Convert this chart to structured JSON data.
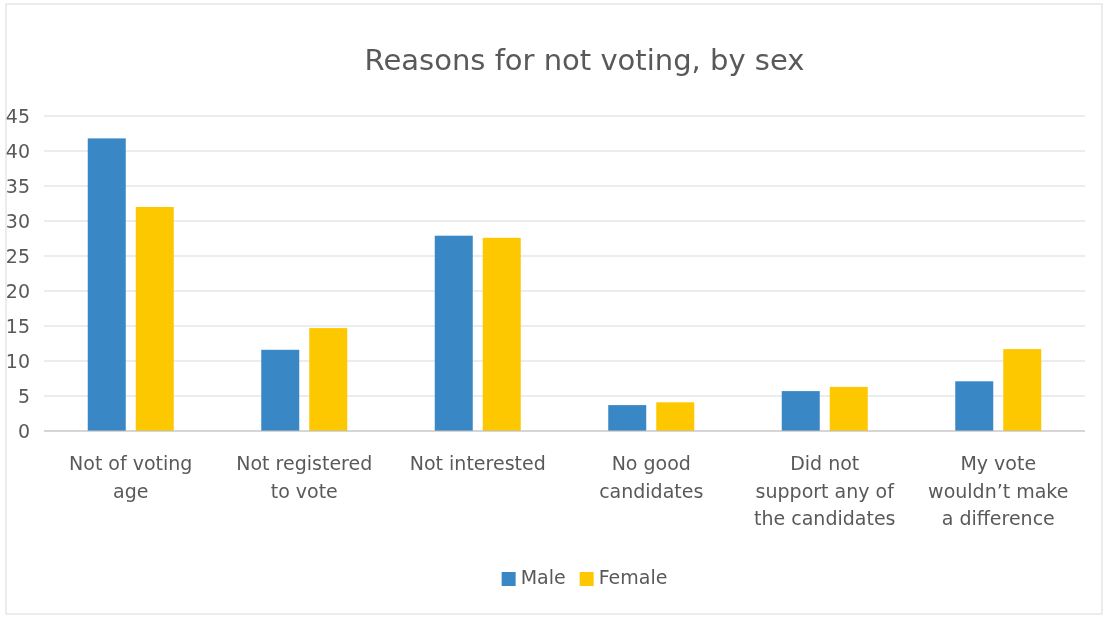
{
  "chart_data": {
    "type": "bar",
    "title": "Reasons for not voting, by sex",
    "categories": [
      "Not of voting age",
      "Not registered to vote",
      "Not interested",
      "No good candidates",
      "Did not support any of the candidates",
      "My vote wouldn’t make a difference"
    ],
    "series": [
      {
        "name": "Male",
        "color": "#3a87c5",
        "values": [
          41.8,
          11.6,
          27.9,
          3.7,
          5.7,
          7.1
        ]
      },
      {
        "name": "Female",
        "color": "#fec800",
        "values": [
          32,
          14.7,
          27.6,
          4.1,
          6.3,
          11.7
        ]
      }
    ],
    "ylim": [
      0,
      45
    ],
    "yticks": [
      0,
      5,
      10,
      15,
      20,
      25,
      30,
      35,
      40,
      45
    ],
    "grid": "y",
    "legend": "bottom"
  }
}
